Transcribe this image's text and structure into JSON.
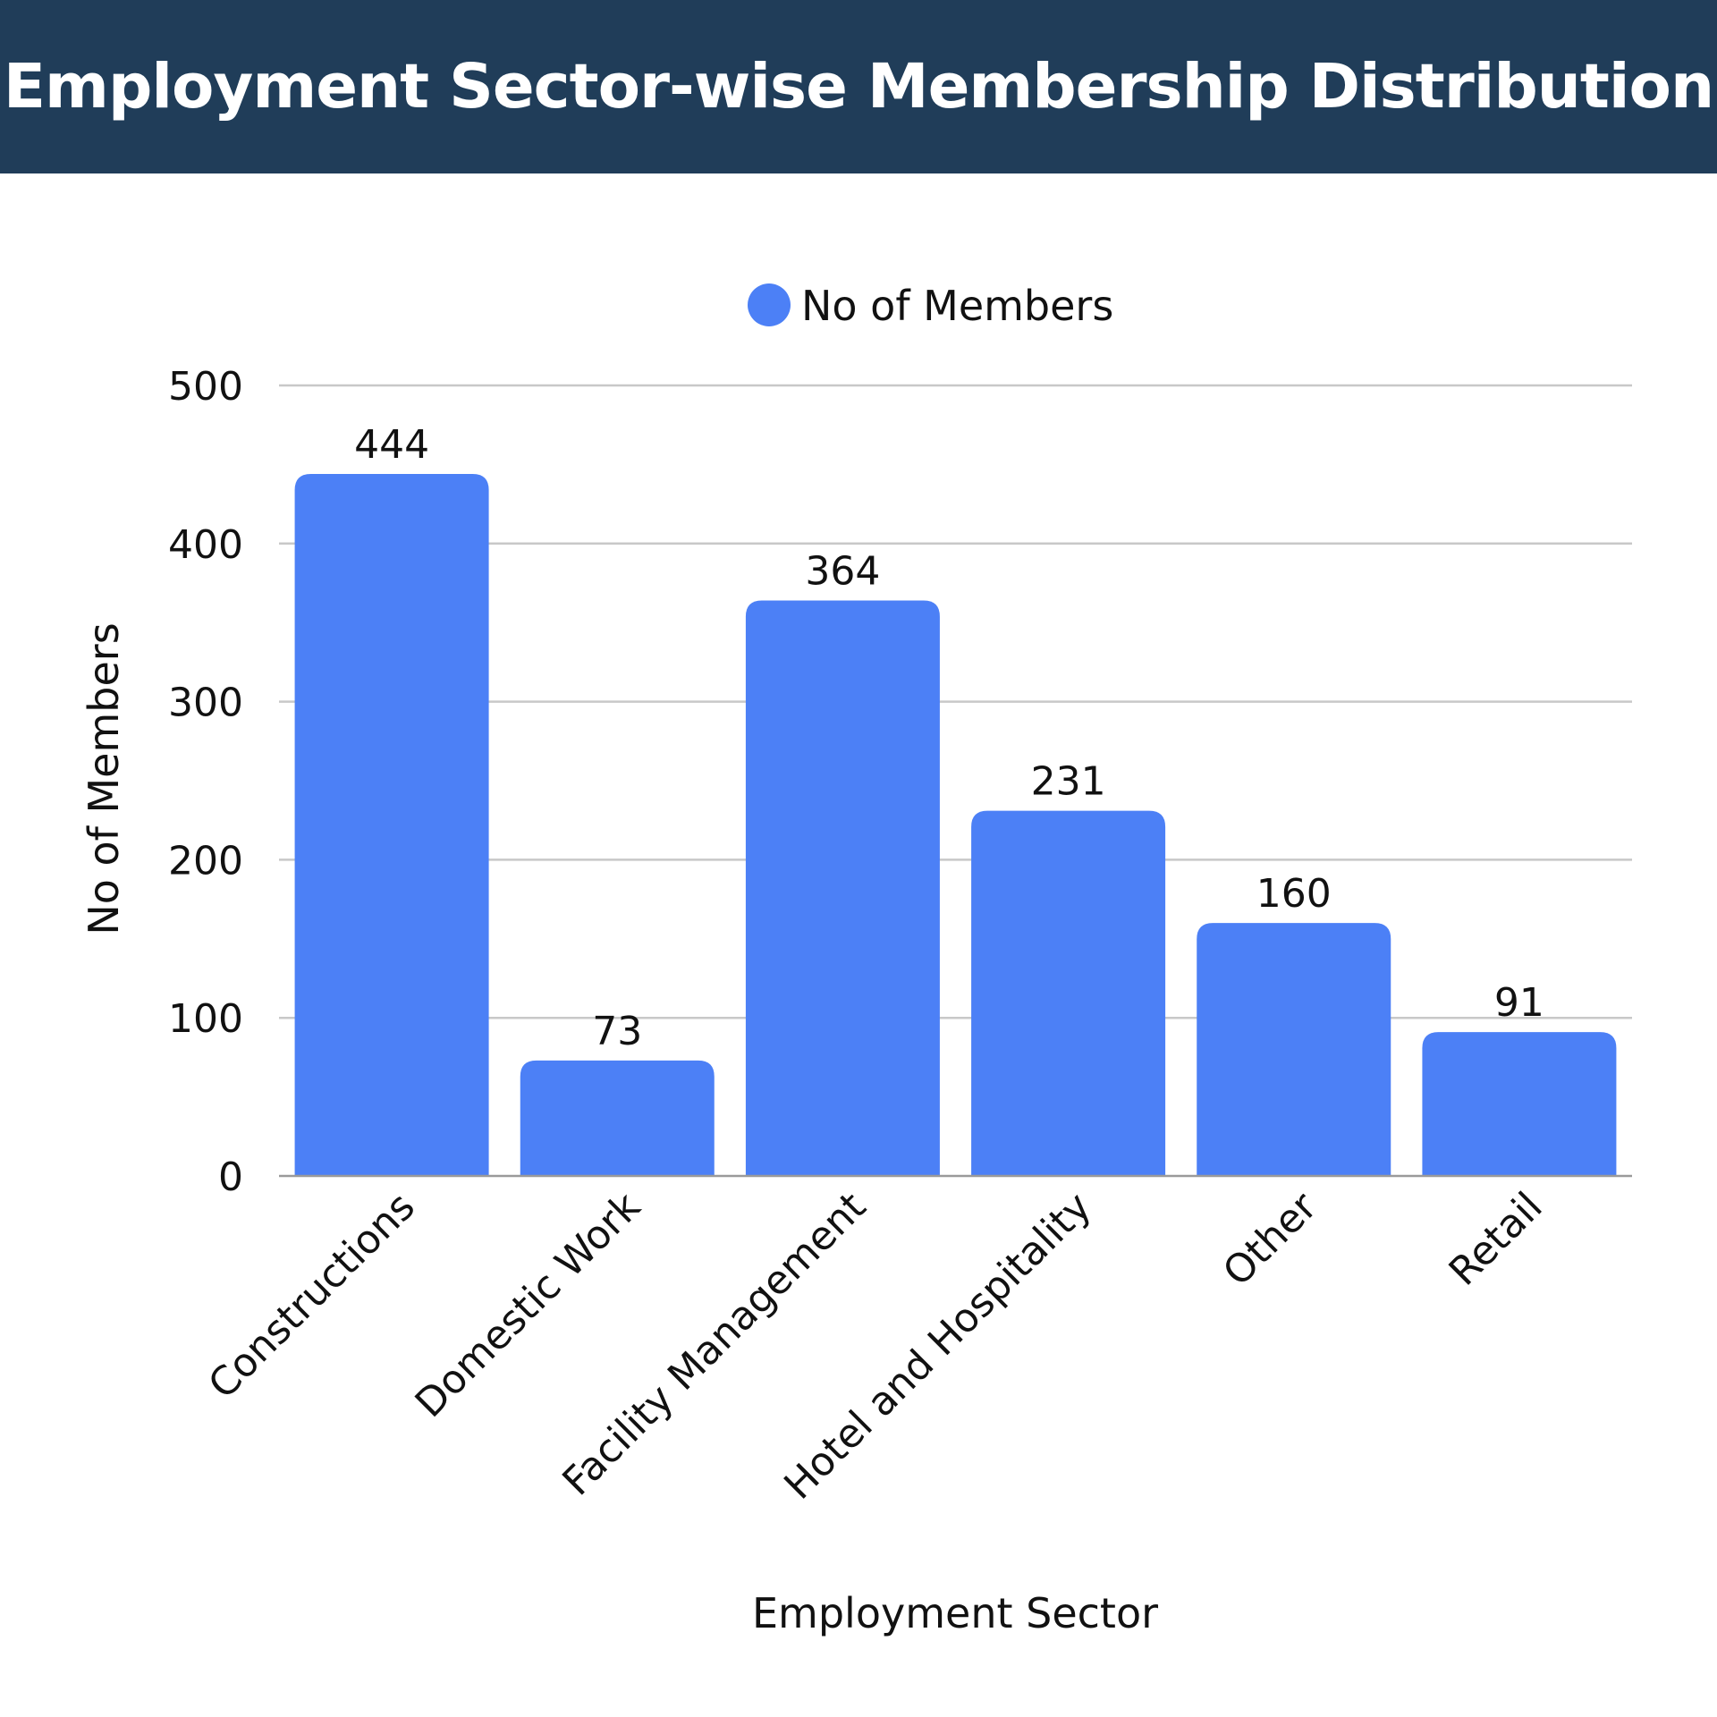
{
  "chart_data": {
    "type": "bar",
    "title": "Employment Sector-wise Membership Distribution",
    "xlabel": "Employment Sector",
    "ylabel": "No of Members",
    "categories": [
      "Constructions",
      "Domestic Work",
      "Facility Management",
      "Hotel and Hospitality",
      "Other",
      "Retail"
    ],
    "series": [
      {
        "name": "No of Members",
        "values": [
          444,
          73,
          364,
          231,
          160,
          91
        ],
        "color": "#4c80f6"
      }
    ],
    "ylim": [
      0,
      500
    ],
    "yticks": [
      0,
      100,
      200,
      300,
      400,
      500
    ],
    "grid": true,
    "legend_position": "top-center",
    "title_bar_color": "#203d59"
  }
}
